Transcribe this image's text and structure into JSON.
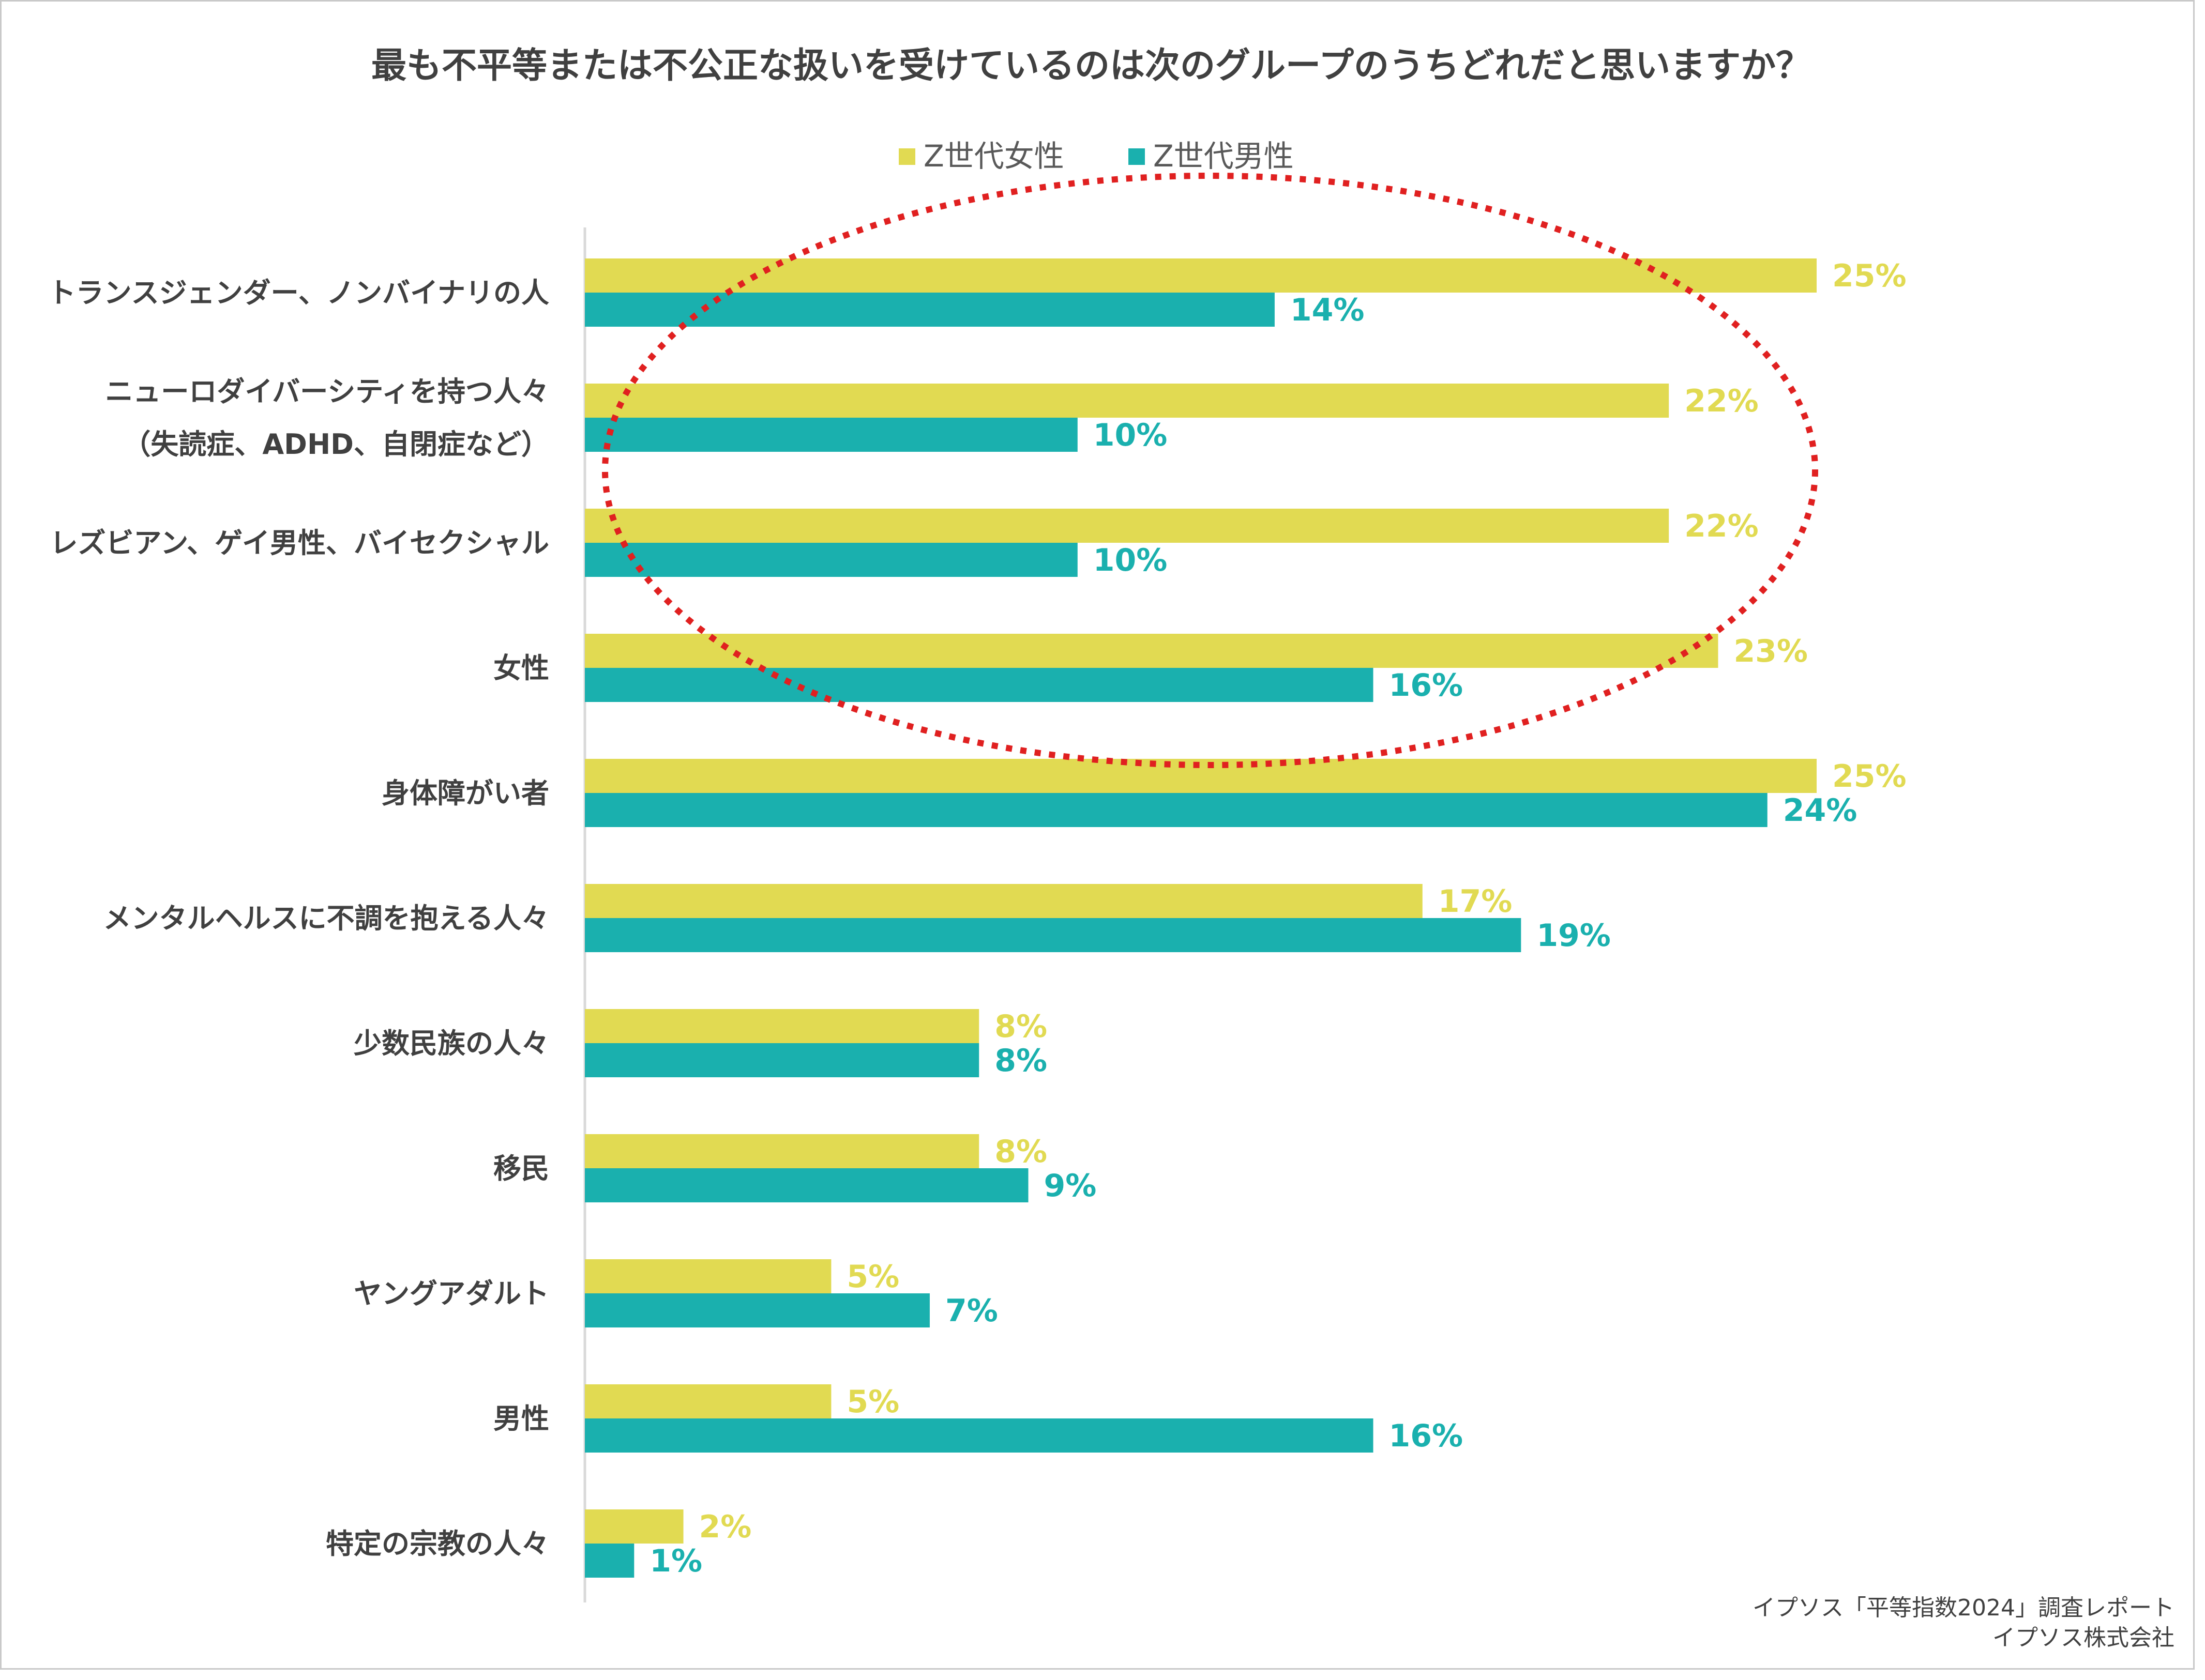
{
  "chart_data": {
    "type": "bar",
    "orientation": "horizontal",
    "title": "最も不平等または不公正な扱いを受けているのは次のグループのうちどれだと思いますか？",
    "legend_position": "top-center",
    "grid": false,
    "xlim": [
      0,
      25
    ],
    "series": [
      {
        "name": "Z世代女性",
        "color": "#e1da52",
        "values": [
          25,
          22,
          22,
          23,
          25,
          17,
          8,
          8,
          5,
          5,
          2
        ]
      },
      {
        "name": "Z世代男性",
        "color": "#1ab0ae",
        "values": [
          14,
          10,
          10,
          16,
          24,
          19,
          8,
          9,
          7,
          16,
          1
        ]
      }
    ],
    "categories": [
      [
        "トランスジェンダー、ノンバイナリの人"
      ],
      [
        "ニューロダイバーシティを持つ人々",
        "（失読症、ADHD、自閉症など）"
      ],
      [
        "レズビアン、ゲイ男性、バイセクシャル"
      ],
      [
        "女性"
      ],
      [
        "身体障がい者"
      ],
      [
        "メンタルヘルスに不調を抱える人々"
      ],
      [
        "少数民族の人々"
      ],
      [
        "移民"
      ],
      [
        "ヤングアダルト"
      ],
      [
        "男性"
      ],
      [
        "特定の宗教の人々"
      ]
    ],
    "value_suffix": "%",
    "annotation": {
      "shape": "dotted-ellipse",
      "color": "#e02020"
    }
  },
  "source": [
    "イプソス「平等指数2024」調査レポート",
    "イプソス株式会社"
  ]
}
